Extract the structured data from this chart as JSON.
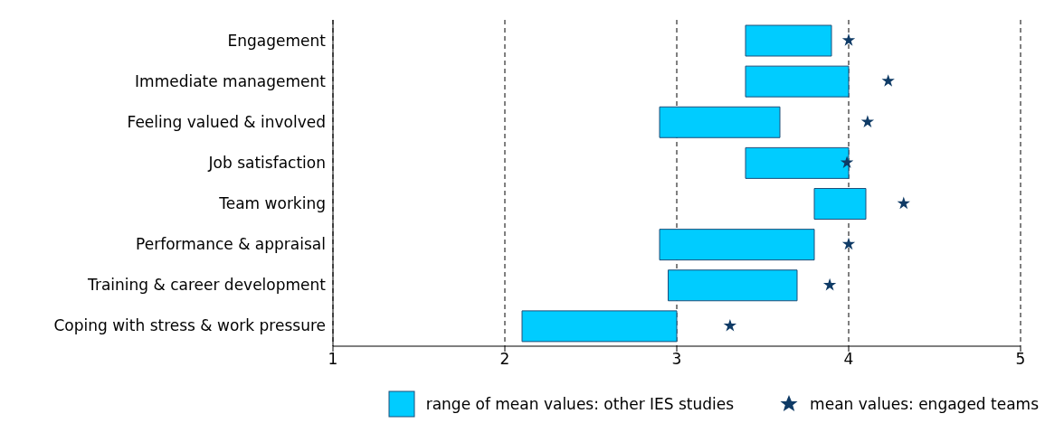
{
  "chart_data": {
    "type": "bar",
    "orientation": "horizontal",
    "categories": [
      "Engagement",
      "Immediate management",
      "Feeling valued & involved",
      "Job satisfaction",
      "Team working",
      "Performance & appraisal",
      "Training & career development",
      "Coping with stress & work pressure"
    ],
    "series": [
      {
        "name": "range of mean values: other IES studies",
        "color": "#00ccff",
        "base": [
          3.4,
          3.4,
          2.9,
          3.4,
          3.8,
          2.9,
          2.95,
          2.1
        ],
        "values": [
          0.5,
          0.6,
          0.7,
          0.6,
          0.3,
          0.9,
          0.75,
          0.9
        ]
      },
      {
        "name": "mean values: engaged teams",
        "type": "scatter",
        "marker": "star",
        "color": "#0f3b66",
        "values": [
          4.0,
          4.23,
          4.11,
          3.99,
          4.32,
          4.0,
          3.89,
          3.31
        ]
      }
    ],
    "xlim": [
      1,
      5
    ],
    "xticks": [
      1,
      2,
      3,
      4,
      5
    ],
    "grid": "x",
    "legend": "bottom"
  }
}
